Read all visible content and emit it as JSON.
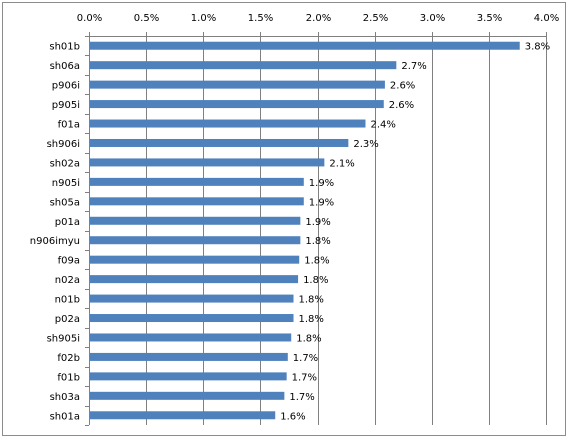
{
  "chart_data": {
    "type": "bar",
    "orientation": "horizontal",
    "title": "",
    "xlabel": "",
    "ylabel": "",
    "xlim": [
      0,
      4.0
    ],
    "x_ticks": [
      "0.0%",
      "0.5%",
      "1.0%",
      "1.5%",
      "2.0%",
      "2.5%",
      "3.0%",
      "3.5%",
      "4.0%"
    ],
    "x_axis_position": "top",
    "grid": "vertical",
    "legend": "none",
    "categories": [
      "sh01b",
      "sh06a",
      "p906i",
      "p905i",
      "f01a",
      "sh906i",
      "sh02a",
      "n905i",
      "sh05a",
      "p01a",
      "n906imyu",
      "f09a",
      "n02a",
      "n01b",
      "p02a",
      "sh905i",
      "f02b",
      "f01b",
      "sh03a",
      "sh01a"
    ],
    "values": [
      3.77,
      2.69,
      2.59,
      2.58,
      2.42,
      2.27,
      2.06,
      1.88,
      1.88,
      1.85,
      1.85,
      1.84,
      1.83,
      1.79,
      1.79,
      1.77,
      1.74,
      1.73,
      1.71,
      1.63
    ],
    "data_labels": [
      "3.8%",
      "2.7%",
      "2.6%",
      "2.6%",
      "2.4%",
      "2.3%",
      "2.1%",
      "1.9%",
      "1.9%",
      "1.9%",
      "1.8%",
      "1.8%",
      "1.8%",
      "1.8%",
      "1.8%",
      "1.8%",
      "1.7%",
      "1.7%",
      "1.7%",
      "1.6%"
    ],
    "bar_color": "#4f81bd"
  }
}
